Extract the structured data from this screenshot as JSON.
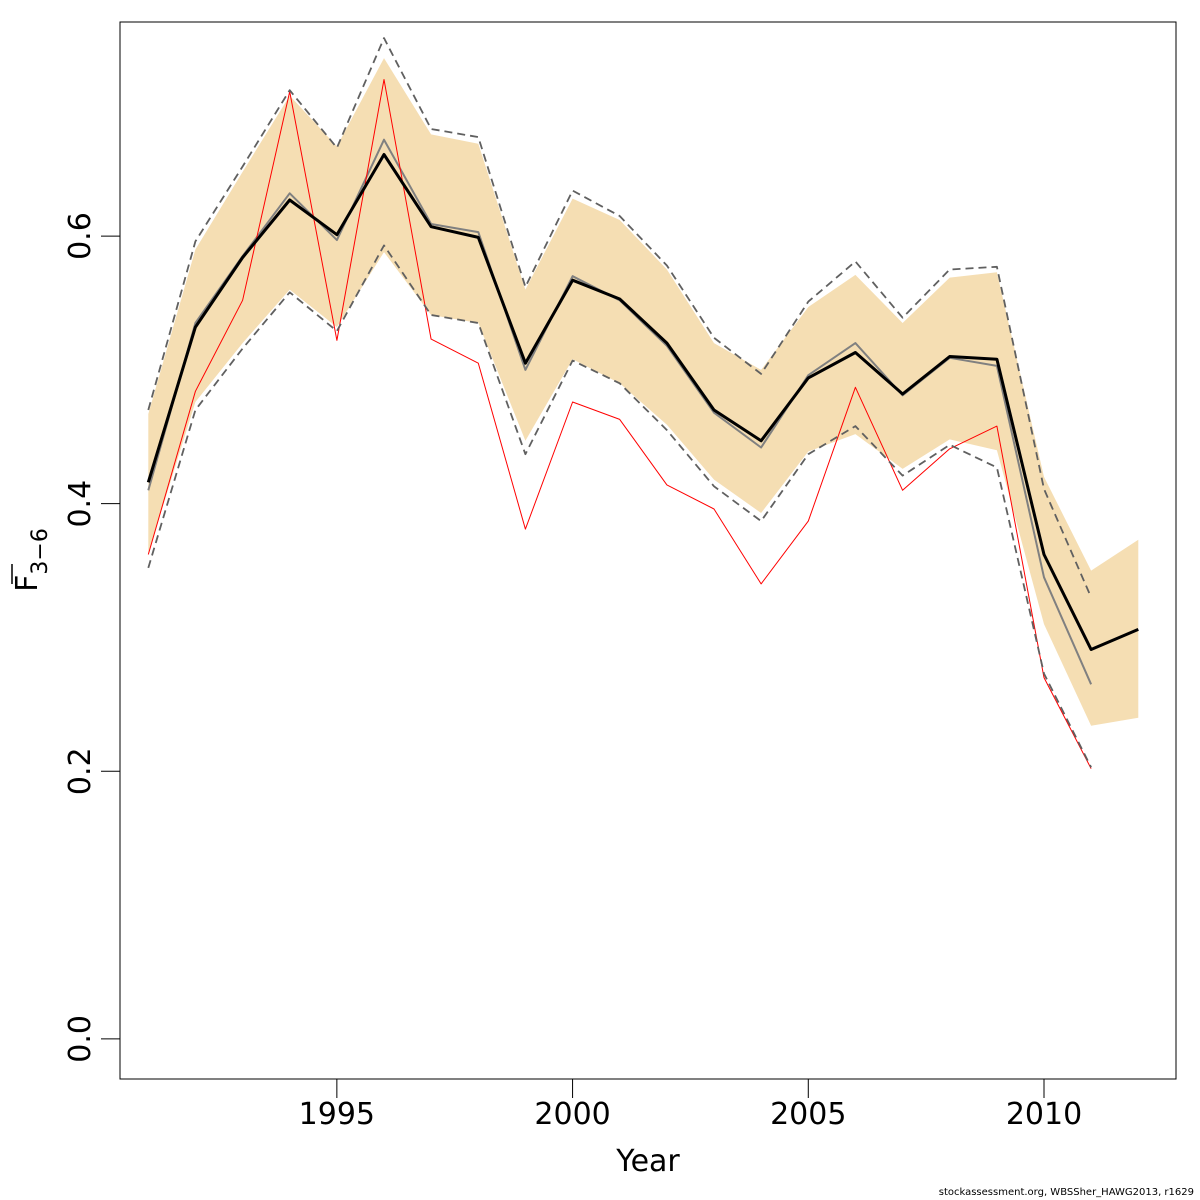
{
  "chart_data": {
    "type": "line",
    "xlabel": "Year",
    "ylabel_main": "F",
    "ylabel_sub": "3−6",
    "xlim": [
      1990.4,
      2012.8
    ],
    "ylim": [
      -0.03,
      0.76
    ],
    "xticks": [
      1995,
      2000,
      2005,
      2010
    ],
    "yticks": [
      0.0,
      0.2,
      0.4,
      0.6
    ],
    "ytick_labels": [
      "0.0",
      "0.2",
      "0.4",
      "0.6"
    ],
    "band": {
      "color": "#f5deb3",
      "x": [
        1991,
        1992,
        1993,
        1994,
        1995,
        1996,
        1997,
        1998,
        1999,
        2000,
        2001,
        2002,
        2003,
        2004,
        2005,
        2006,
        2007,
        2008,
        2009,
        2010,
        2011,
        2012
      ],
      "upper": [
        0.467,
        0.59,
        0.648,
        0.705,
        0.667,
        0.733,
        0.676,
        0.669,
        0.56,
        0.628,
        0.612,
        0.575,
        0.52,
        0.5,
        0.547,
        0.571,
        0.535,
        0.569,
        0.573,
        0.42,
        0.35,
        0.373
      ],
      "lower": [
        0.363,
        0.476,
        0.52,
        0.56,
        0.532,
        0.588,
        0.541,
        0.535,
        0.447,
        0.508,
        0.49,
        0.459,
        0.418,
        0.393,
        0.439,
        0.452,
        0.426,
        0.448,
        0.44,
        0.31,
        0.234,
        0.24
      ]
    },
    "series": [
      {
        "color": "#000000",
        "x": [
          1991,
          1992,
          1993,
          1994,
          1995,
          1996,
          1997,
          1998,
          1999,
          2000,
          2001,
          2002,
          2003,
          2004,
          2005,
          2006,
          2007,
          2008,
          2009,
          2010,
          2011,
          2012
        ],
        "values": [
          0.416,
          0.532,
          0.584,
          0.627,
          0.601,
          0.661,
          0.607,
          0.599,
          0.505,
          0.567,
          0.553,
          0.52,
          0.47,
          0.447,
          0.494,
          0.513,
          0.482,
          0.51,
          0.508,
          0.362,
          0.291,
          0.306
        ]
      },
      {
        "color": "#808080",
        "x": [
          1991,
          1992,
          1993,
          1994,
          1995,
          1996,
          1997,
          1998,
          1999,
          2000,
          2001,
          2002,
          2003,
          2004,
          2005,
          2006,
          2007,
          2008,
          2009,
          2010,
          2011
        ],
        "values": [
          0.41,
          0.535,
          0.585,
          0.632,
          0.597,
          0.672,
          0.609,
          0.603,
          0.5,
          0.57,
          0.552,
          0.518,
          0.468,
          0.442,
          0.496,
          0.52,
          0.481,
          0.509,
          0.503,
          0.345,
          0.265
        ]
      },
      {
        "color": "#ff0000",
        "x": [
          1991,
          1992,
          1993,
          1994,
          1995,
          1996,
          1997,
          1998,
          1999,
          2000,
          2001,
          2002,
          2003,
          2004,
          2005,
          2006,
          2007,
          2008,
          2009,
          2010,
          2011
        ],
        "values": [
          0.362,
          0.484,
          0.552,
          0.708,
          0.522,
          0.717,
          0.523,
          0.505,
          0.381,
          0.476,
          0.463,
          0.414,
          0.396,
          0.34,
          0.387,
          0.487,
          0.41,
          0.441,
          0.458,
          0.27,
          0.202
        ]
      },
      {
        "color": "#606060",
        "dashed": true,
        "x": [
          1991,
          1992,
          1993,
          1994,
          1995,
          1996,
          1997,
          1998,
          1999,
          2000,
          2001,
          2002,
          2003,
          2004,
          2005,
          2006,
          2007,
          2008,
          2009,
          2010,
          2011
        ],
        "values": [
          0.47,
          0.596,
          0.652,
          0.709,
          0.666,
          0.748,
          0.68,
          0.674,
          0.562,
          0.634,
          0.615,
          0.578,
          0.524,
          0.497,
          0.551,
          0.581,
          0.539,
          0.575,
          0.577,
          0.411,
          0.33
        ]
      },
      {
        "color": "#606060",
        "dashed": true,
        "x": [
          1991,
          1992,
          1993,
          1994,
          1995,
          1996,
          1997,
          1998,
          1999,
          2000,
          2001,
          2002,
          2003,
          2004,
          2005,
          2006,
          2007,
          2008,
          2009,
          2010,
          2011
        ],
        "values": [
          0.352,
          0.47,
          0.516,
          0.558,
          0.529,
          0.593,
          0.541,
          0.535,
          0.437,
          0.507,
          0.49,
          0.455,
          0.413,
          0.387,
          0.437,
          0.458,
          0.421,
          0.444,
          0.427,
          0.273,
          0.203
        ]
      }
    ]
  },
  "footer_text": "stockassessment.org, WBSSher_HAWG2013, r1629"
}
